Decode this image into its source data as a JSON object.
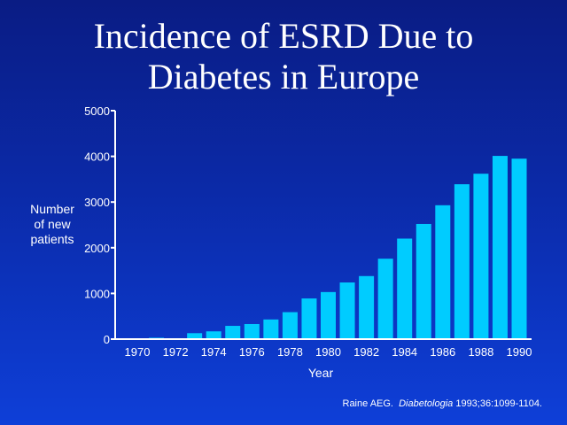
{
  "chart_data": {
    "type": "bar",
    "title": "Incidence of ESRD Due to Diabetes in Europe",
    "title_lines": [
      "Incidence of ESRD Due to",
      "Diabetes in Europe"
    ],
    "xlabel": "Year",
    "ylabel_lines": [
      "Number",
      "of new",
      "patients"
    ],
    "ylim": [
      0,
      5000
    ],
    "yticks": [
      0,
      1000,
      2000,
      3000,
      4000,
      5000
    ],
    "xtick_labels": [
      "1970",
      "1972",
      "1974",
      "1976",
      "1978",
      "1980",
      "1982",
      "1984",
      "1986",
      "1988",
      "1990"
    ],
    "categories": [
      "1970",
      "1971",
      "1972",
      "1973",
      "1974",
      "1975",
      "1976",
      "1977",
      "1978",
      "1979",
      "1980",
      "1981",
      "1982",
      "1983",
      "1984",
      "1985",
      "1986",
      "1987",
      "1988",
      "1989",
      "1990"
    ],
    "values": [
      0,
      30,
      20,
      130,
      170,
      290,
      330,
      430,
      590,
      890,
      1030,
      1240,
      1380,
      1760,
      2200,
      2520,
      2930,
      3390,
      3620,
      4010,
      3950
    ],
    "grid": false,
    "bar_color": "#00ccff"
  },
  "citation": {
    "author": "Raine AEG.",
    "journal": "Diabetologia",
    "ref": "1993;36:1099-1104."
  }
}
